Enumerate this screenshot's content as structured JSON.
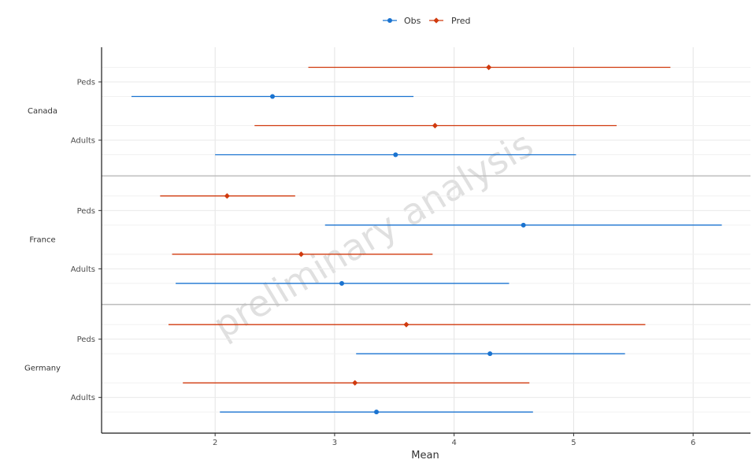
{
  "chart_data": {
    "type": "forest",
    "xlabel": "Mean",
    "xlim": [
      1.05,
      6.48
    ],
    "x_ticks": [
      2,
      3,
      4,
      5,
      6
    ],
    "grid": true,
    "legend_position": "top-center",
    "watermark": "preliminary analysis",
    "series": [
      {
        "name": "Obs",
        "color": "#1a73d0",
        "marker": "circle"
      },
      {
        "name": "Pred",
        "color": "#d03a0e",
        "marker": "diamond"
      }
    ],
    "groups": [
      {
        "label": "Canada",
        "rows": [
          {
            "label": "Peds",
            "Obs": {
              "mean": 2.48,
              "low": 1.3,
              "high": 3.66
            },
            "Pred": {
              "mean": 4.29,
              "low": 2.78,
              "high": 5.81
            }
          },
          {
            "label": "Adults",
            "Obs": {
              "mean": 3.51,
              "low": 2.0,
              "high": 5.02
            },
            "Pred": {
              "mean": 3.84,
              "low": 2.33,
              "high": 5.36
            }
          }
        ]
      },
      {
        "label": "France",
        "rows": [
          {
            "label": "Peds",
            "Obs": {
              "mean": 4.58,
              "low": 2.92,
              "high": 6.24
            },
            "Pred": {
              "mean": 2.1,
              "low": 1.54,
              "high": 2.67
            }
          },
          {
            "label": "Adults",
            "Obs": {
              "mean": 3.06,
              "low": 1.67,
              "high": 4.46
            },
            "Pred": {
              "mean": 2.72,
              "low": 1.64,
              "high": 3.82
            }
          }
        ]
      },
      {
        "label": "Germany",
        "rows": [
          {
            "label": "Peds",
            "Obs": {
              "mean": 4.3,
              "low": 3.18,
              "high": 5.43
            },
            "Pred": {
              "mean": 3.6,
              "low": 1.61,
              "high": 5.6
            }
          },
          {
            "label": "Adults",
            "Obs": {
              "mean": 3.35,
              "low": 2.04,
              "high": 4.66
            },
            "Pred": {
              "mean": 3.17,
              "low": 1.73,
              "high": 4.63
            }
          }
        ]
      }
    ]
  }
}
